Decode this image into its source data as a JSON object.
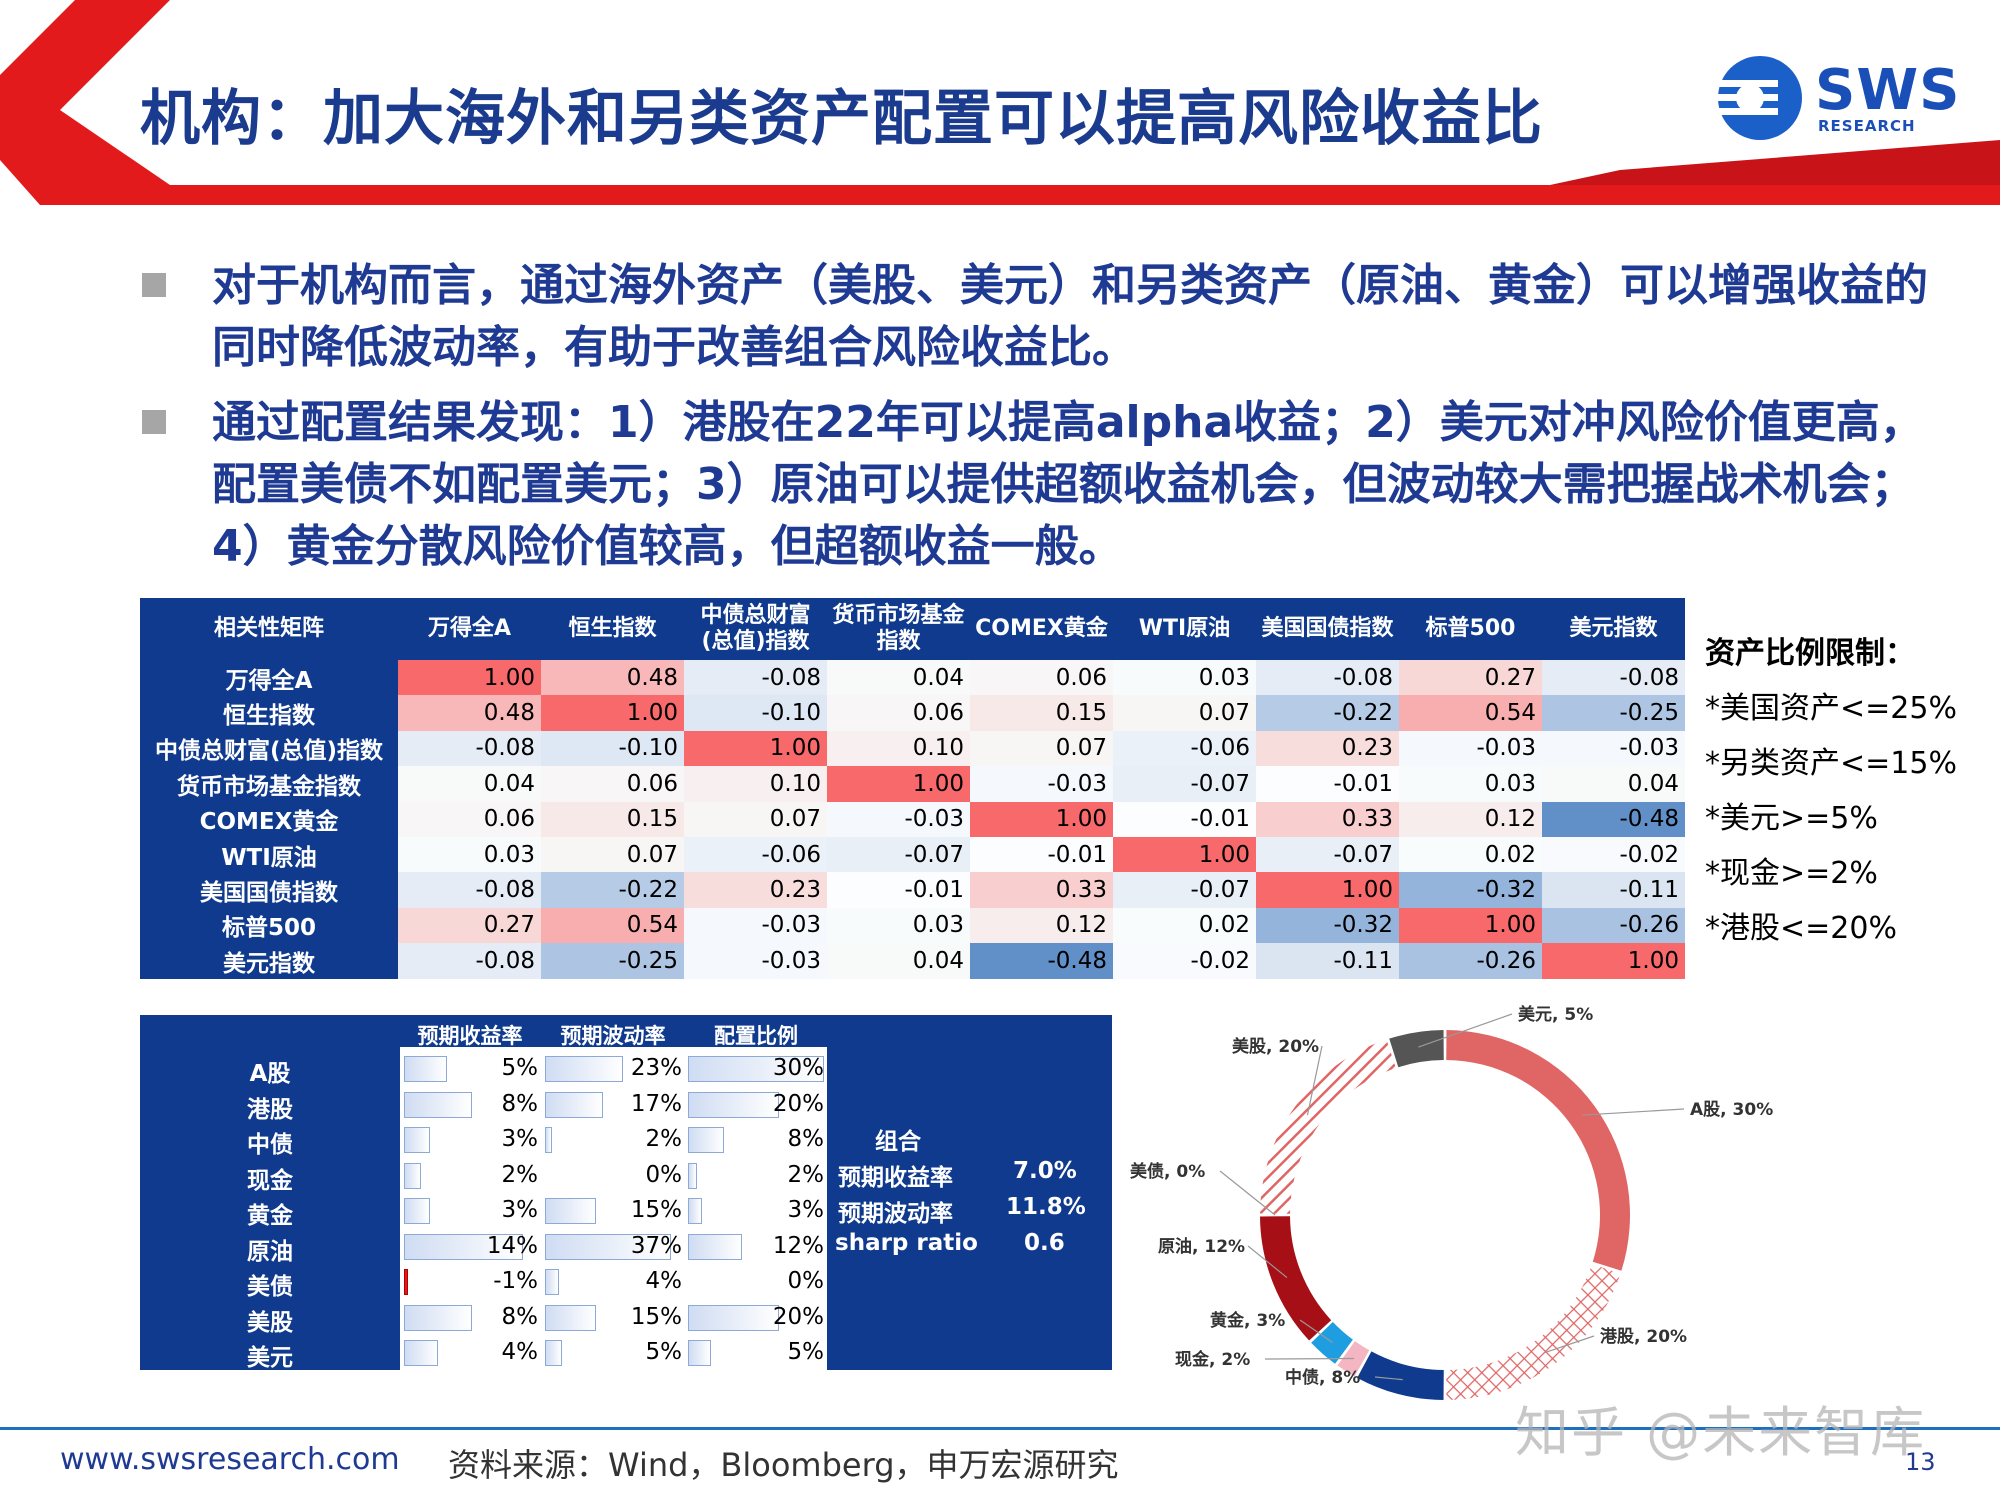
{
  "header": {
    "title": "机构：加大海外和另类资产配置可以提高风险收益比",
    "logo_text": "SWS",
    "logo_sub": "RESEARCH"
  },
  "bullets": [
    "对于机构而言，通过海外资产（美股、美元）和另类资产（原油、黄金）可以增强收益的同时降低波动率，有助于改善组合风险收益比。",
    "通过配置结果发现：1）港股在22年可以提高alpha收益；2）美元对冲风险价值更高，配置美债不如配置美元；3）原油可以提供超额收益机会，但波动较大需把握战术机会；4）黄金分散风险价值较高，但超额收益一般。"
  ],
  "constraints": {
    "title": "资产比例限制：",
    "items": [
      "*美国资产<=25%",
      "*另类资产<=15%",
      "*美元>=5%",
      "*现金>=2%",
      "*港股<=20%"
    ]
  },
  "allocation": {
    "headers": [
      "预期收益率",
      "预期波动率",
      "配置比例"
    ],
    "rows": [
      {
        "label": "A股",
        "ret": "5%",
        "vol": "23%",
        "weight": "30%",
        "r": 5,
        "v": 23,
        "w": 30
      },
      {
        "label": "港股",
        "ret": "8%",
        "vol": "17%",
        "weight": "20%",
        "r": 8,
        "v": 17,
        "w": 20
      },
      {
        "label": "中债",
        "ret": "3%",
        "vol": "2%",
        "weight": "8%",
        "r": 3,
        "v": 2,
        "w": 8
      },
      {
        "label": "现金",
        "ret": "2%",
        "vol": "0%",
        "weight": "2%",
        "r": 2,
        "v": 0,
        "w": 2
      },
      {
        "label": "黄金",
        "ret": "3%",
        "vol": "15%",
        "weight": "3%",
        "r": 3,
        "v": 15,
        "w": 3
      },
      {
        "label": "原油",
        "ret": "14%",
        "vol": "37%",
        "weight": "12%",
        "r": 14,
        "v": 37,
        "w": 12
      },
      {
        "label": "美债",
        "ret": "-1%",
        "vol": "4%",
        "weight": "0%",
        "r": -1,
        "v": 4,
        "w": 0
      },
      {
        "label": "美股",
        "ret": "8%",
        "vol": "15%",
        "weight": "20%",
        "r": 8,
        "v": 15,
        "w": 20
      },
      {
        "label": "美元",
        "ret": "4%",
        "vol": "5%",
        "weight": "5%",
        "r": 4,
        "v": 5,
        "w": 5
      }
    ],
    "combo": {
      "title": "组合",
      "ret_label": "预期收益率",
      "ret_value": "7.0%",
      "vol_label": "预期波动率",
      "vol_value": "11.8%",
      "sr_label": "sharp ratio",
      "sr_value": "0.6"
    }
  },
  "chart_data": [
    {
      "type": "heatmap",
      "title": "相关性矩阵",
      "columns": [
        "万得全A",
        "恒生指数",
        "中债总财富(总值)指数",
        "货币市场基金指数",
        "COMEX黄金",
        "WTI原油",
        "美国国债指数",
        "标普500",
        "美元指数"
      ],
      "rows": [
        "万得全A",
        "恒生指数",
        "中债总财富(总值)指数",
        "货币市场基金指数",
        "COMEX黄金",
        "WTI原油",
        "美国国债指数",
        "标普500",
        "美元指数"
      ],
      "values": [
        [
          1.0,
          0.48,
          -0.08,
          0.04,
          0.06,
          0.03,
          -0.08,
          0.27,
          -0.08
        ],
        [
          0.48,
          1.0,
          -0.1,
          0.06,
          0.15,
          0.07,
          -0.22,
          0.54,
          -0.25
        ],
        [
          -0.08,
          -0.1,
          1.0,
          0.1,
          0.07,
          -0.06,
          0.23,
          -0.03,
          -0.03
        ],
        [
          0.04,
          0.06,
          0.1,
          1.0,
          -0.03,
          -0.07,
          -0.01,
          0.03,
          0.04
        ],
        [
          0.06,
          0.15,
          0.07,
          -0.03,
          1.0,
          -0.01,
          0.33,
          0.12,
          -0.48
        ],
        [
          0.03,
          0.07,
          -0.06,
          -0.07,
          -0.01,
          1.0,
          -0.07,
          0.02,
          -0.02
        ],
        [
          -0.08,
          -0.22,
          0.23,
          -0.01,
          0.33,
          -0.07,
          1.0,
          -0.32,
          -0.11
        ],
        [
          0.27,
          0.54,
          -0.03,
          0.03,
          0.12,
          0.02,
          -0.32,
          1.0,
          -0.26
        ],
        [
          -0.08,
          -0.25,
          -0.03,
          0.04,
          -0.48,
          -0.02,
          -0.11,
          -0.26,
          1.0
        ]
      ],
      "display": [
        [
          "1.00",
          "0.48",
          "-0.08",
          "0.04",
          "0.06",
          "0.03",
          "-0.08",
          "0.27",
          "-0.08"
        ],
        [
          "0.48",
          "1.00",
          "-0.10",
          "0.06",
          "0.15",
          "0.07",
          "-0.22",
          "0.54",
          "-0.25"
        ],
        [
          "-0.08",
          "-0.10",
          "1.00",
          "0.10",
          "0.07",
          "-0.06",
          "0.23",
          "-0.03",
          "-0.03"
        ],
        [
          "0.04",
          "0.06",
          "0.10",
          "1.00",
          "-0.03",
          "-0.07",
          "-0.01",
          "0.03",
          "0.04"
        ],
        [
          "0.06",
          "0.15",
          "0.07",
          "-0.03",
          "1.00",
          "-0.01",
          "0.33",
          "0.12",
          "-0.48"
        ],
        [
          "0.03",
          "0.07",
          "-0.06",
          "-0.07",
          "-0.01",
          "1.00",
          "-0.07",
          "0.02",
          "-0.02"
        ],
        [
          "-0.08",
          "-0.22",
          "0.23",
          "-0.01",
          "0.33",
          "-0.07",
          "1.00",
          "-0.32",
          "-0.11"
        ],
        [
          "0.27",
          "0.54",
          "-0.03",
          "0.03",
          "0.12",
          "0.02",
          "-0.32",
          "1.00",
          "-0.26"
        ],
        [
          "-0.08",
          "-0.25",
          "-0.03",
          "0.04",
          "-0.48",
          "-0.02",
          "-0.11",
          "-0.26",
          "1.00"
        ]
      ],
      "colors": {
        "positive": "#f8696b",
        "negative": "#5a8ac6"
      }
    },
    {
      "type": "pie",
      "title": "",
      "categories": [
        "A股",
        "港股",
        "中债",
        "现金",
        "黄金",
        "原油",
        "美债",
        "美股",
        "美元"
      ],
      "values": [
        30,
        20,
        8,
        2,
        3,
        12,
        0,
        20,
        5
      ],
      "labels": [
        "A股, 30%",
        "港股, 20%",
        "中债, 8%",
        "现金, 2%",
        "黄金, 3%",
        "原油, 12%",
        "美债, 0%",
        "美股, 20%",
        "美元, 5%"
      ],
      "colors": [
        "#e06666",
        "#e06666",
        "#0f3a8d",
        "#f4b6c2",
        "#1e9ee0",
        "#a50f15",
        "#999999",
        "#e06666",
        "#555555"
      ]
    }
  ],
  "footer": {
    "site": "www.swsresearch.com",
    "source": "资料来源：Wind，Bloomberg，申万宏源研究",
    "page": "13",
    "watermark": "知乎 @未来智库"
  }
}
